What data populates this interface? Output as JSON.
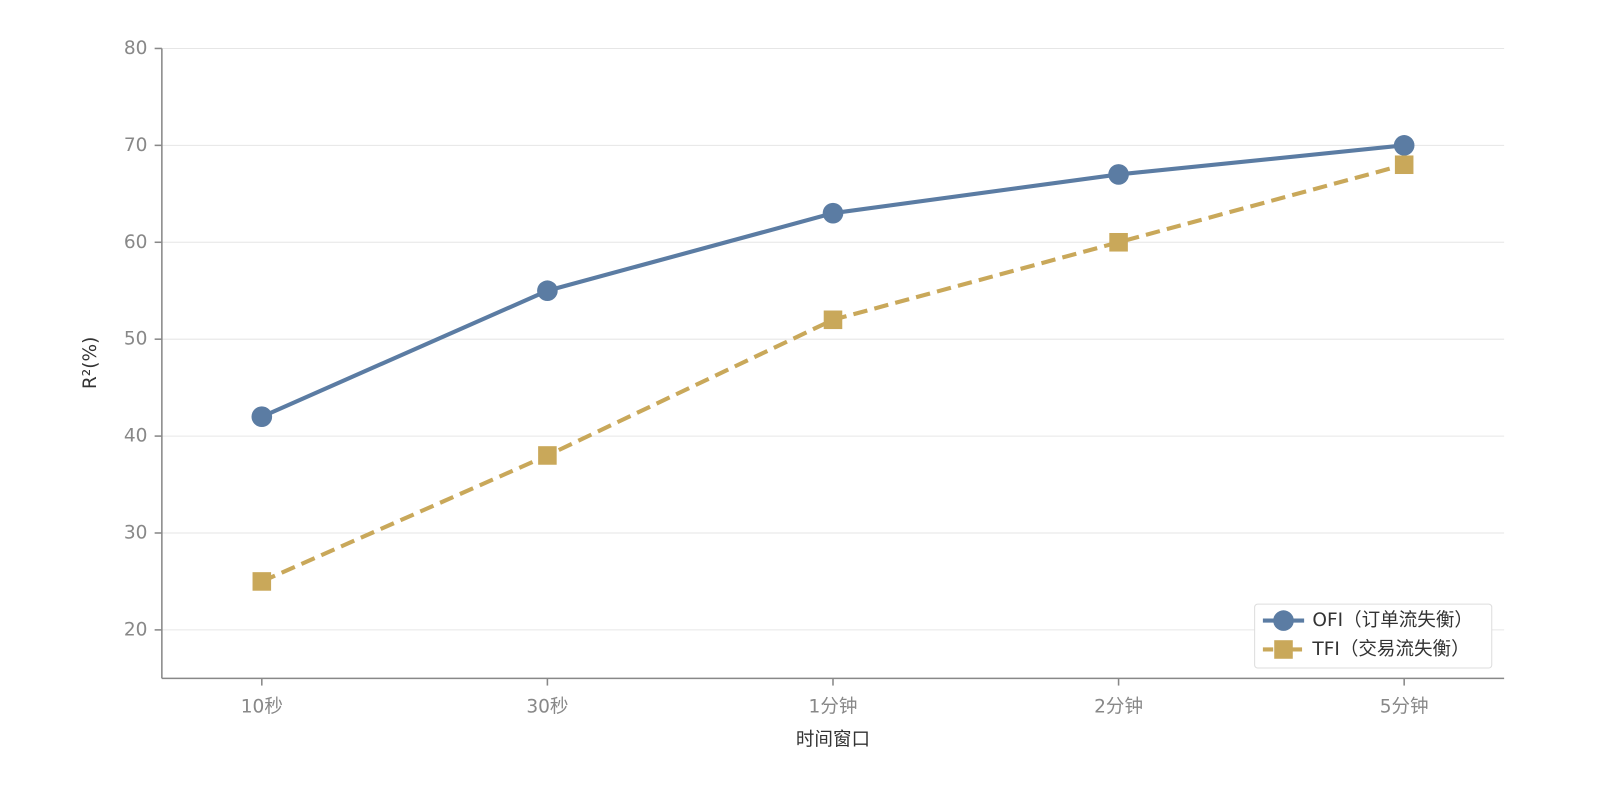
{
  "chart_data": {
    "type": "line",
    "x_label": "时间窗口",
    "y_label": "R²(%)",
    "categories": [
      "10秒",
      "30秒",
      "1分钟",
      "2分钟",
      "5分钟"
    ],
    "series": [
      {
        "name": "OFI（订单流失衡）",
        "color": "#5b7ca3",
        "marker": "circle",
        "linestyle": "solid",
        "values": [
          42,
          55,
          63,
          67,
          70
        ]
      },
      {
        "name": "TFI（交易流失衡）",
        "color": "#c9a85a",
        "marker": "square",
        "linestyle": "dashed",
        "values": [
          25,
          38,
          52,
          60,
          68
        ]
      }
    ],
    "ylim": [
      15,
      80
    ],
    "yticks": [
      20,
      30,
      40,
      50,
      60,
      70,
      80
    ],
    "grid": true,
    "legend": "lower right"
  }
}
